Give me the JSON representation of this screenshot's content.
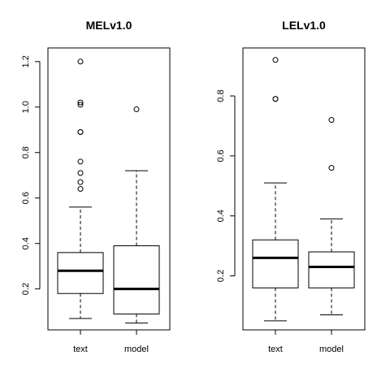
{
  "chart_data": [
    {
      "type": "boxplot",
      "title": "MELv1.0",
      "ylim": [
        0.02,
        1.26
      ],
      "yticks": [
        0.2,
        0.4,
        0.6,
        0.8,
        1.0,
        1.2
      ],
      "ytick_labels": [
        "0.2",
        "0.4",
        "0.6",
        "0.8",
        "1.0",
        "1.2"
      ],
      "categories": [
        "text",
        "model"
      ],
      "boxes": [
        {
          "name": "text",
          "whisker_low": 0.07,
          "q1": 0.18,
          "median": 0.28,
          "q3": 0.36,
          "whisker_high": 0.56,
          "outliers": [
            0.64,
            0.67,
            0.71,
            0.76,
            0.89,
            0.89,
            1.01,
            1.02,
            1.2
          ]
        },
        {
          "name": "model",
          "whisker_low": 0.05,
          "q1": 0.09,
          "median": 0.2,
          "q3": 0.39,
          "whisker_high": 0.72,
          "outliers": [
            0.99
          ]
        }
      ]
    },
    {
      "type": "boxplot",
      "title": "LELv1.0",
      "ylim": [
        0.02,
        0.96
      ],
      "yticks": [
        0.2,
        0.4,
        0.6,
        0.8
      ],
      "ytick_labels": [
        "0.2",
        "0.4",
        "0.6",
        "0.8"
      ],
      "categories": [
        "text",
        "model"
      ],
      "boxes": [
        {
          "name": "text",
          "whisker_low": 0.05,
          "q1": 0.16,
          "median": 0.26,
          "q3": 0.32,
          "whisker_high": 0.51,
          "outliers": [
            0.79,
            0.79,
            0.92
          ]
        },
        {
          "name": "model",
          "whisker_low": 0.07,
          "q1": 0.16,
          "median": 0.23,
          "q3": 0.28,
          "whisker_high": 0.39,
          "outliers": [
            0.56,
            0.72
          ]
        }
      ]
    }
  ]
}
